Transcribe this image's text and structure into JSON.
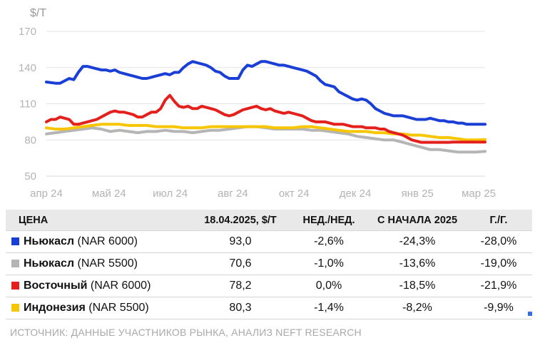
{
  "chart_data": {
    "type": "line",
    "unit": "$/Т",
    "ylim": [
      50,
      170
    ],
    "yticks": [
      50,
      80,
      110,
      140,
      170
    ],
    "x_range": [
      0,
      96
    ],
    "x_ticks": [
      {
        "x": 0,
        "label": "апр 24"
      },
      {
        "x": 13.7,
        "label": "май 24"
      },
      {
        "x": 27.1,
        "label": "июл 24"
      },
      {
        "x": 40.8,
        "label": "авг 24"
      },
      {
        "x": 54.2,
        "label": "окт 24"
      },
      {
        "x": 67.6,
        "label": "дек 24"
      },
      {
        "x": 81.2,
        "label": "янв 25"
      },
      {
        "x": 94.6,
        "label": "мар 25"
      }
    ],
    "grid": true,
    "series": [
      {
        "name": "Ньюкасл (NAR 6000)",
        "color": "#1a3fd6",
        "x": [
          0,
          2,
          3,
          4,
          5,
          6,
          7,
          8,
          9,
          10,
          11,
          12,
          13,
          14,
          15,
          16,
          17,
          18,
          19,
          20,
          21,
          22,
          23,
          24,
          25,
          26,
          27,
          28,
          29,
          30,
          31,
          32,
          33,
          34,
          35,
          36,
          37,
          38,
          39,
          40,
          41,
          42,
          43,
          44,
          45,
          46,
          47,
          48,
          49,
          50,
          51,
          52,
          53,
          54,
          55,
          56,
          57,
          58,
          59,
          60,
          61,
          62,
          63,
          64,
          65,
          66,
          67,
          68,
          69,
          70,
          71,
          72,
          73,
          74,
          75,
          76,
          77,
          78,
          79,
          80,
          81,
          82,
          83,
          84,
          85,
          86,
          87,
          88,
          89,
          90,
          91,
          92,
          93,
          94,
          95,
          96
        ],
        "y": [
          128,
          127,
          127,
          129,
          131,
          130,
          136,
          141,
          141,
          140,
          139,
          138,
          138,
          137,
          138,
          136,
          135,
          134,
          133,
          132,
          131,
          131,
          132,
          133,
          134,
          135,
          134,
          136,
          136,
          140,
          143,
          145,
          144,
          143,
          142,
          140,
          137,
          136,
          133,
          131,
          131,
          131,
          138,
          142,
          141,
          143,
          145,
          145,
          144,
          143,
          142,
          142,
          141,
          140,
          139,
          138,
          137,
          135,
          133,
          129,
          126,
          125,
          124,
          120,
          118,
          116,
          114,
          113,
          114,
          113,
          110,
          106,
          104,
          102,
          101,
          100,
          100,
          100,
          99,
          98,
          97,
          97,
          97,
          98,
          97,
          96,
          96,
          95,
          95,
          94,
          94,
          93,
          93,
          93,
          93,
          93
        ]
      },
      {
        "name": "Ньюкасл (NAR 5500)",
        "color": "#b5b5b5",
        "x": [
          0,
          2,
          4,
          6,
          8,
          10,
          12,
          14,
          16,
          18,
          20,
          22,
          24,
          26,
          28,
          30,
          32,
          34,
          36,
          38,
          40,
          42,
          44,
          46,
          48,
          50,
          52,
          54,
          56,
          58,
          60,
          62,
          64,
          66,
          68,
          70,
          72,
          74,
          76,
          78,
          80,
          82,
          84,
          86,
          88,
          90,
          92,
          94,
          96
        ],
        "y": [
          85,
          86,
          87,
          88,
          89,
          90,
          89,
          87,
          88,
          87,
          86,
          87,
          87,
          88,
          87,
          87,
          86,
          87,
          88,
          88,
          89,
          90,
          91,
          91,
          90,
          89,
          89,
          89,
          89,
          88,
          88,
          87,
          86,
          85,
          83,
          82,
          81,
          80,
          80,
          78,
          76,
          74,
          72,
          72,
          71,
          70,
          70,
          70,
          70.6
        ]
      },
      {
        "name": "Восточный (NAR 6000)",
        "color": "#e3201b",
        "x": [
          0,
          1,
          2,
          3,
          4,
          5,
          6,
          7,
          8,
          9,
          10,
          11,
          12,
          13,
          14,
          15,
          16,
          17,
          18,
          19,
          20,
          21,
          22,
          23,
          24,
          25,
          26,
          27,
          28,
          29,
          30,
          31,
          32,
          33,
          34,
          35,
          36,
          37,
          38,
          39,
          40,
          41,
          42,
          43,
          44,
          45,
          46,
          47,
          48,
          49,
          50,
          51,
          52,
          53,
          54,
          55,
          56,
          57,
          58,
          59,
          60,
          61,
          62,
          63,
          64,
          65,
          66,
          67,
          68,
          69,
          70,
          71,
          72,
          73,
          74,
          75,
          76,
          77,
          78,
          79,
          80,
          81,
          82,
          83,
          84,
          85,
          86,
          87,
          88,
          89,
          90,
          91,
          92,
          93,
          94,
          95,
          96
        ],
        "y": [
          95,
          97,
          97,
          99,
          98,
          97,
          93,
          93,
          94,
          95,
          96,
          97,
          99,
          101,
          103,
          104,
          103,
          103,
          102,
          101,
          99,
          99,
          101,
          103,
          103,
          106,
          113,
          117,
          112,
          108,
          107,
          108,
          106,
          106,
          108,
          107,
          106,
          105,
          103,
          101,
          100,
          101,
          103,
          105,
          106,
          107,
          108,
          106,
          105,
          106,
          104,
          103,
          102,
          103,
          102,
          101,
          100,
          98,
          96,
          95,
          95,
          95,
          94,
          93,
          93,
          93,
          92,
          91,
          91,
          91,
          90,
          90,
          90,
          89,
          89,
          87,
          86,
          85,
          84,
          82,
          80,
          79,
          78,
          78,
          78,
          78,
          78,
          78,
          78,
          78.2,
          78.2,
          78.2,
          78.2,
          78.2,
          78.2,
          78.2,
          78.2
        ]
      },
      {
        "name": "Индонезия (NAR 5500)",
        "color": "#f7c600",
        "x": [
          0,
          2,
          4,
          6,
          8,
          10,
          12,
          14,
          16,
          18,
          20,
          22,
          24,
          26,
          28,
          30,
          32,
          34,
          36,
          38,
          40,
          42,
          44,
          46,
          48,
          50,
          52,
          54,
          56,
          58,
          60,
          62,
          64,
          66,
          68,
          70,
          72,
          74,
          76,
          78,
          80,
          82,
          84,
          86,
          88,
          90,
          92,
          94,
          96
        ],
        "y": [
          90,
          89,
          89,
          90,
          91,
          92,
          93,
          93,
          93,
          92,
          92,
          92,
          91,
          91,
          91,
          90,
          90,
          90,
          91,
          91,
          91,
          91,
          91,
          91,
          91,
          90,
          90,
          90,
          91,
          91,
          90,
          89,
          88,
          87,
          87,
          87,
          86,
          86,
          85,
          85,
          84,
          84,
          83,
          82,
          82,
          81,
          80,
          80,
          80.3
        ]
      }
    ]
  },
  "table": {
    "headers": [
      "ЦЕНА",
      "18.04.2025, $/Т",
      "НЕД./НЕД.",
      "С НАЧАЛА 2025",
      "Г./Г."
    ],
    "rows": [
      {
        "name": "Ньюкасл",
        "spec": "(NAR 6000)",
        "color": "#1a3fd6",
        "price": "93,0",
        "wow": "-2,6%",
        "ytd": "-24,3%",
        "yoy": "-28,0%"
      },
      {
        "name": "Ньюкасл",
        "spec": "(NAR 5500)",
        "color": "#b5b5b5",
        "price": "70,6",
        "wow": "-1,0%",
        "ytd": "-13,6%",
        "yoy": "-19,0%"
      },
      {
        "name": "Восточный",
        "spec": "(NAR 6000)",
        "color": "#e3201b",
        "price": "78,2",
        "wow": "0,0%",
        "ytd": "-18,5%",
        "yoy": "-21,9%"
      },
      {
        "name": "Индонезия",
        "spec": "(NAR 5500)",
        "color": "#f7c600",
        "price": "80,3",
        "wow": "-1,4%",
        "ytd": "-8,2%",
        "yoy": "-9,9%"
      }
    ]
  },
  "source": "ИСТОЧНИК: ДАННЫЕ УЧАСТНИКОВ РЫНКА, АНАЛИЗ NEFT RESEARCH"
}
